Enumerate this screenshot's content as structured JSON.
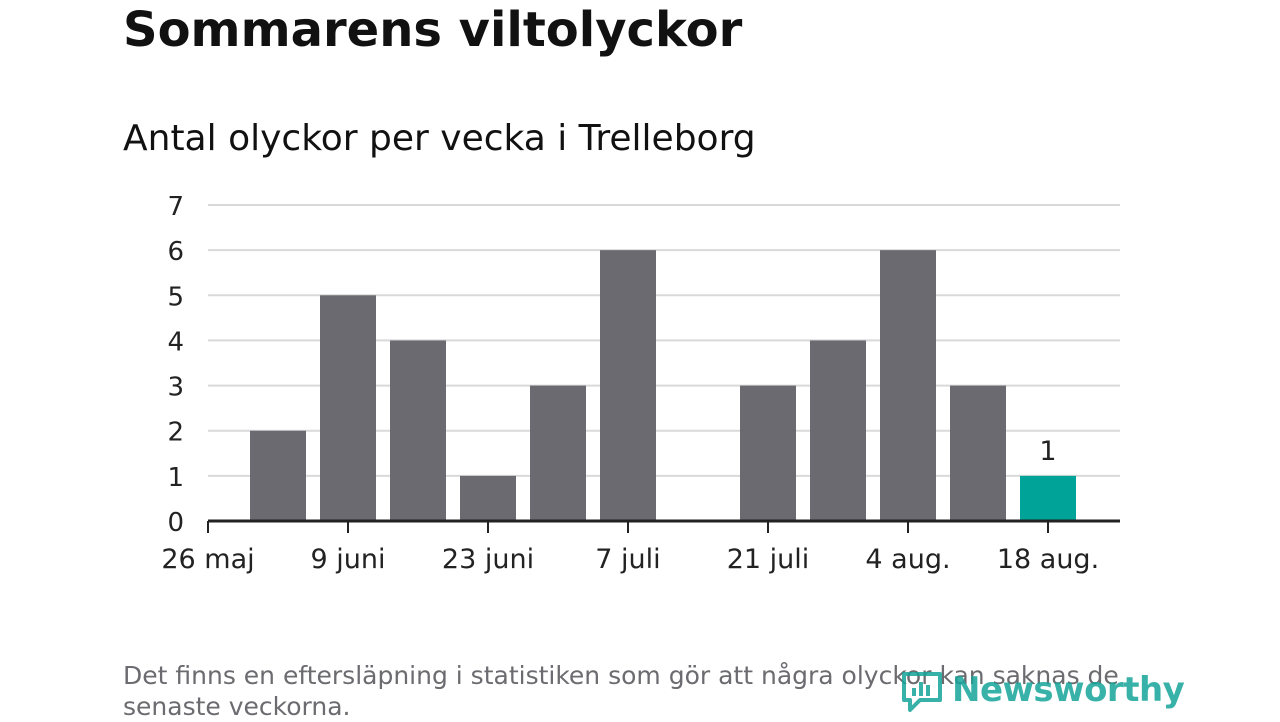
{
  "title": "Sommarens viltolyckor",
  "subtitle": "Antal olyckor per vecka i Trelleborg",
  "footnote": "Det finns en eftersläpning i statistiken som gör att några olyckor kan saknas de senaste veckorna.",
  "logo": {
    "text": "Newsworthy",
    "icon": "newsworthy-logo-icon",
    "color": "#16a59a"
  },
  "chart_data": {
    "type": "bar",
    "x_tick_labels": [
      "26 maj",
      "9 juni",
      "23 juni",
      "7 juli",
      "21 juli",
      "4 aug.",
      "18 aug."
    ],
    "categories": [
      "26 maj",
      "2 juni",
      "9 juni",
      "16 juni",
      "23 juni",
      "30 juni",
      "7 juli",
      "14 juli",
      "21 juli",
      "28 juli",
      "4 aug.",
      "11 aug.",
      "18 aug."
    ],
    "values": [
      0,
      2,
      5,
      4,
      1,
      3,
      6,
      0,
      3,
      4,
      6,
      3,
      1
    ],
    "highlight_index": 12,
    "highlight_label": "1",
    "ylim": [
      0,
      7
    ],
    "yticks": [
      0,
      1,
      2,
      3,
      4,
      5,
      6,
      7
    ],
    "grid": true,
    "colors": {
      "bar": "#6b6a70",
      "highlight": "#00a398",
      "grid": "#d9d9d9",
      "axis": "#222222"
    }
  }
}
